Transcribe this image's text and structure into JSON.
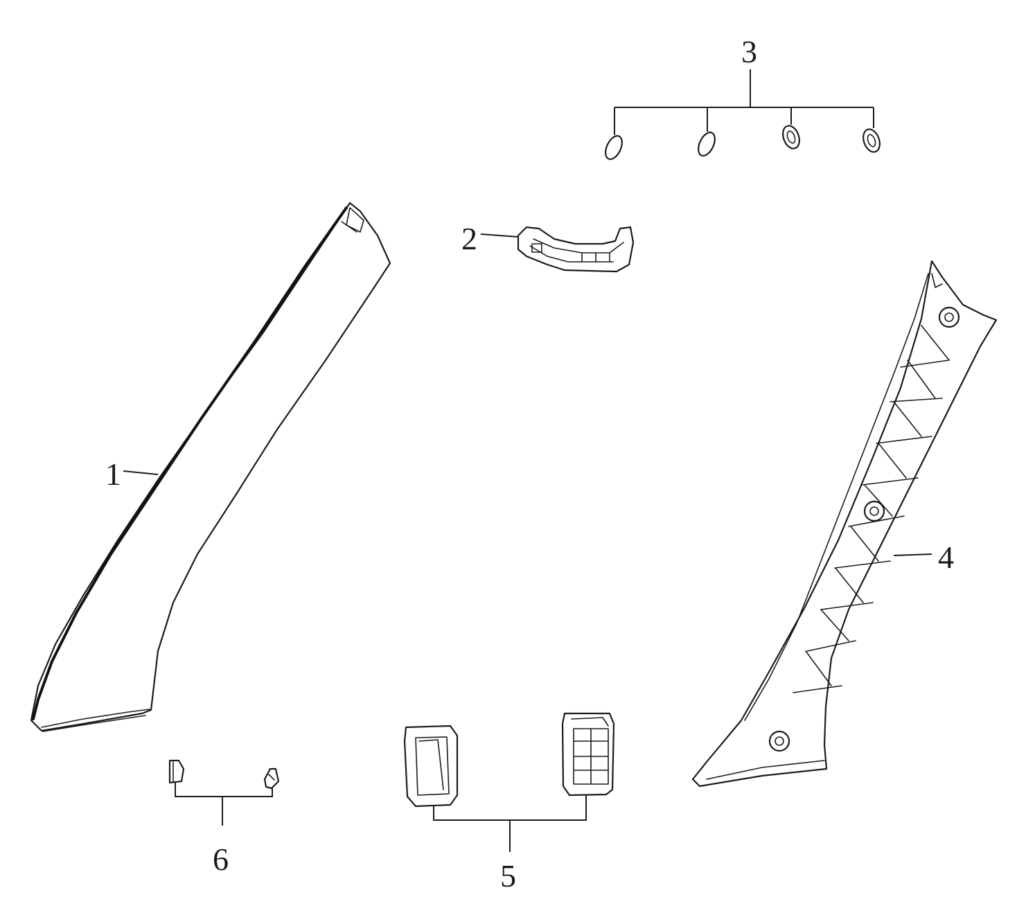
{
  "callouts": {
    "c1": "1",
    "c2": "2",
    "c3": "3",
    "c4": "4",
    "c5": "5",
    "c6": "6"
  },
  "colors": {
    "line": "#1a1a1a",
    "background": "#ffffff"
  }
}
